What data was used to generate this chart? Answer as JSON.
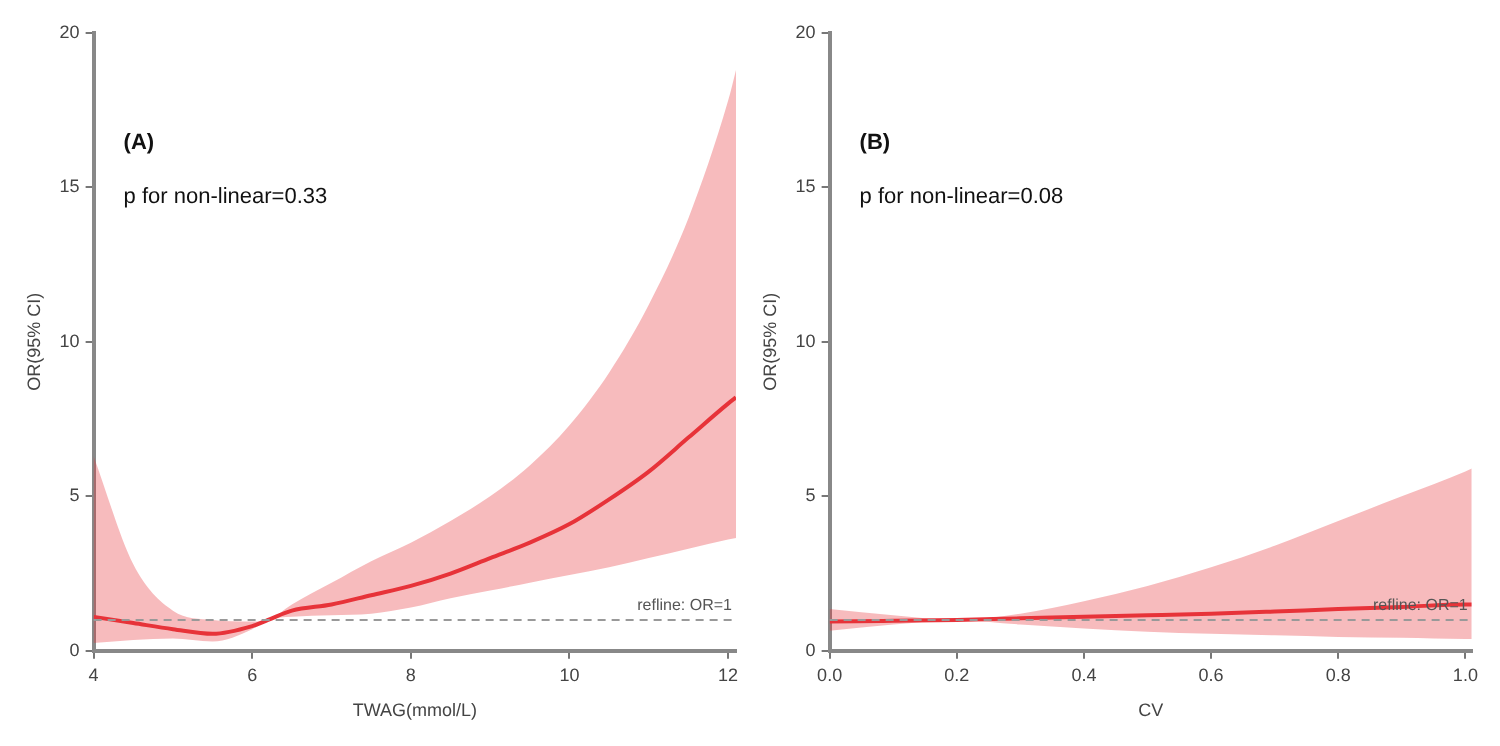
{
  "chart_data": [
    {
      "type": "line",
      "annotations": [
        "(A)",
        "p for non-linear=0.33"
      ],
      "xlabel": "TWAG(mmol/L)",
      "ylabel": "OR(95% CI)",
      "xlim": [
        4,
        12.1
      ],
      "xticks": [
        4,
        6,
        8,
        10,
        12
      ],
      "ylim": [
        0,
        20
      ],
      "yticks": [
        0,
        5,
        10,
        15,
        20
      ],
      "grid": false,
      "legend": false,
      "marker": "none",
      "line_style": "solid",
      "ref_lines": [
        {
          "axis": "y",
          "value": 1,
          "label": "refline: OR=1",
          "color": "#999999",
          "line_style": "dashed"
        }
      ],
      "series": [
        {
          "color": "#e8333a",
          "x": [
            4,
            4.5,
            5,
            5.5,
            6,
            6.2,
            6.5,
            7,
            7.5,
            8,
            8.5,
            9,
            9.5,
            10,
            10.5,
            11,
            11.5,
            12,
            12.1
          ],
          "values": [
            1.1,
            0.9,
            0.7,
            0.55,
            0.8,
            1.0,
            1.3,
            1.5,
            1.8,
            2.1,
            2.5,
            3.0,
            3.5,
            4.1,
            4.9,
            5.8,
            6.9,
            8.0,
            8.2
          ],
          "lower": [
            0.25,
            0.35,
            0.4,
            0.3,
            0.7,
            1.0,
            1.1,
            1.15,
            1.2,
            1.4,
            1.7,
            1.95,
            2.2,
            2.45,
            2.7,
            3.0,
            3.3,
            3.6,
            3.65
          ],
          "upper": [
            6.3,
            2.8,
            1.3,
            1.0,
            0.95,
            1.0,
            1.5,
            2.2,
            2.9,
            3.5,
            4.2,
            5.0,
            6.0,
            7.3,
            9.0,
            11.2,
            14.0,
            17.8,
            18.8
          ]
        }
      ]
    },
    {
      "type": "line",
      "annotations": [
        "(B)",
        "p for non-linear=0.08"
      ],
      "xlabel": "CV",
      "ylabel": "OR(95% CI)",
      "xlim": [
        0,
        1.01
      ],
      "xticks": [
        {
          "value": 0,
          "label": "0.0"
        },
        0.2,
        0.4,
        0.6,
        0.8,
        {
          "value": 1,
          "label": "1.0"
        }
      ],
      "ylim": [
        0,
        20
      ],
      "yticks": [
        0,
        5,
        10,
        15,
        20
      ],
      "grid": false,
      "legend": false,
      "marker": "none",
      "line_style": "solid",
      "ref_lines": [
        {
          "axis": "y",
          "value": 1,
          "label": "refline: OR=1",
          "color": "#999999",
          "line_style": "dashed"
        }
      ],
      "series": [
        {
          "color": "#e8333a",
          "x": [
            0,
            0.1,
            0.2,
            0.3,
            0.4,
            0.5,
            0.6,
            0.7,
            0.8,
            0.9,
            1.0,
            1.01
          ],
          "values": [
            0.95,
            0.97,
            1.0,
            1.05,
            1.1,
            1.15,
            1.2,
            1.27,
            1.35,
            1.42,
            1.5,
            1.5
          ],
          "lower": [
            0.65,
            0.85,
            1.0,
            0.85,
            0.72,
            0.62,
            0.55,
            0.5,
            0.45,
            0.42,
            0.38,
            0.38
          ],
          "upper": [
            1.35,
            1.15,
            1.0,
            1.2,
            1.6,
            2.1,
            2.7,
            3.4,
            4.2,
            5.0,
            5.8,
            5.9
          ]
        }
      ]
    }
  ]
}
